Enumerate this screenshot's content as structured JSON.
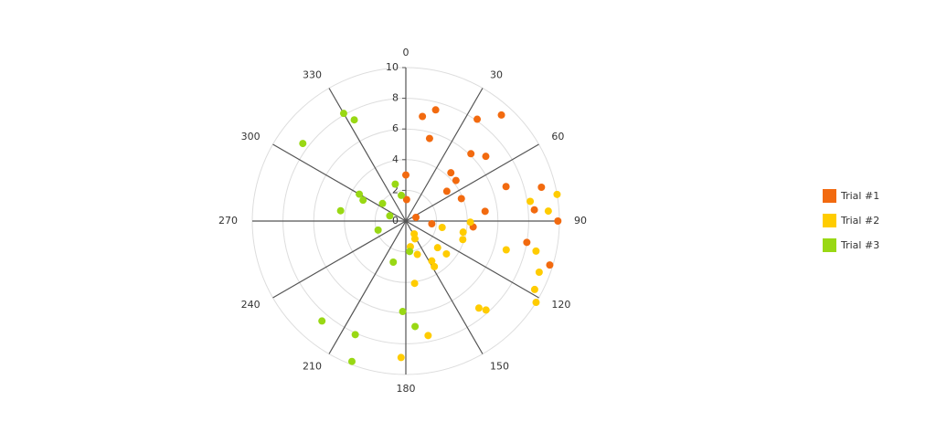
{
  "chart_data": {
    "type": "polar-scatter",
    "rlim": [
      0,
      10
    ],
    "rticks": [
      0,
      2,
      4,
      6,
      8,
      10
    ],
    "thetalim": [
      0,
      360
    ],
    "thetaticks": [
      0,
      30,
      60,
      90,
      120,
      150,
      180,
      210,
      240,
      270,
      300,
      330
    ],
    "grid": true,
    "legend": "right",
    "series": [
      {
        "name": "Trial #1",
        "color": "#f26a0f",
        "theta": [
          9,
          15,
          16,
          0,
          2,
          70,
          96,
          43,
          51,
          54,
          68,
          44,
          51,
          35,
          42,
          71,
          83,
          95,
          76,
          85,
          90,
          100,
          107
        ],
        "values": [
          6.9,
          7.5,
          5.6,
          3.0,
          1.4,
          0.7,
          1.7,
          4.3,
          4.2,
          3.3,
          3.9,
          6.1,
          6.7,
          8.1,
          9.3,
          6.9,
          5.2,
          4.4,
          9.1,
          8.4,
          9.9,
          8.0,
          9.8
        ]
      },
      {
        "name": "Trial #2",
        "color": "#ffcc00",
        "theta": [
          80,
          81,
          86,
          91,
          101,
          108,
          100,
          106,
          103,
          111,
          118,
          122,
          140,
          138,
          130,
          129,
          147,
          148,
          161,
          172,
          169,
          182,
          147,
          153,
          170
        ],
        "values": [
          10,
          8.2,
          9.3,
          4.2,
          3.8,
          3.9,
          2.4,
          6.8,
          8.7,
          9.3,
          9.5,
          10,
          7.4,
          7.8,
          2.7,
          3.4,
          3.1,
          3.5,
          2.3,
          4.1,
          7.6,
          8.9,
          1.0,
          1.3,
          1.7
        ]
      },
      {
        "name": "Trial #3",
        "color": "#99d814",
        "theta": [
          330,
          333,
          307,
          344,
          350,
          300,
          296,
          307,
          279,
          288,
          252,
          197,
          173,
          182,
          175,
          204,
          220,
          201
        ],
        "values": [
          8.1,
          7.4,
          8.4,
          2.5,
          1.7,
          3.5,
          3.1,
          1.9,
          4.3,
          1.1,
          1.9,
          2.8,
          2.0,
          5.9,
          6.9,
          8.1,
          8.5,
          9.8
        ]
      }
    ]
  }
}
